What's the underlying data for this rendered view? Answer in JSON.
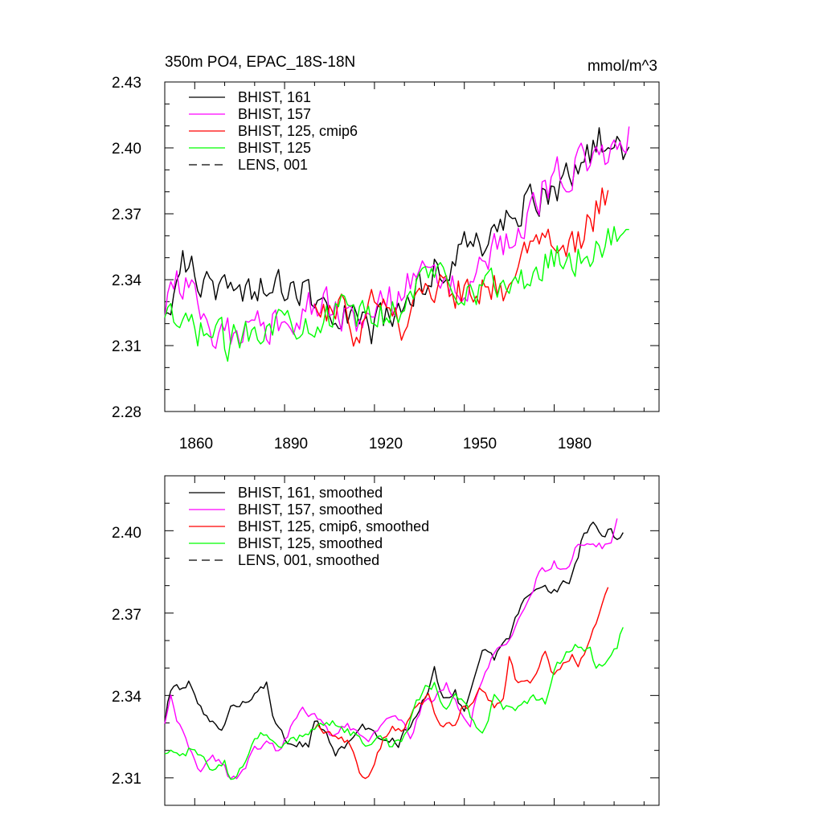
{
  "chart_data": [
    {
      "type": "line",
      "title": "350m PO4, EPAC_18S-18N",
      "units": "mmol/m^3",
      "xlabel": "",
      "ylabel": "",
      "xlim": [
        1850,
        2015
      ],
      "ylim": [
        2.28,
        2.43
      ],
      "xticks": [
        1860,
        1890,
        1920,
        1950,
        1980
      ],
      "xtick_labels": [
        "1860",
        "1890",
        "1920",
        "1950",
        "1980"
      ],
      "yticks": [
        2.28,
        2.31,
        2.34,
        2.37,
        2.4,
        2.43
      ],
      "ytick_labels": [
        "2.28",
        "2.31",
        "2.34",
        "2.37",
        "2.40",
        "2.43"
      ],
      "legend_position": "top-left",
      "series": [
        {
          "name": "BHIST, 161",
          "color": "#000000",
          "dash": "solid",
          "noise": 0.0075,
          "anchors": [
            [
              1850,
              2.322
            ],
            [
              1856,
              2.35
            ],
            [
              1858,
              2.345
            ],
            [
              1866,
              2.336
            ],
            [
              1880,
              2.337
            ],
            [
              1890,
              2.336
            ],
            [
              1900,
              2.332
            ],
            [
              1910,
              2.327
            ],
            [
              1920,
              2.317
            ],
            [
              1930,
              2.33
            ],
            [
              1940,
              2.345
            ],
            [
              1950,
              2.355
            ],
            [
              1960,
              2.36
            ],
            [
              1970,
              2.375
            ],
            [
              1980,
              2.381
            ],
            [
              1990,
              2.393
            ],
            [
              1995,
              2.405
            ],
            [
              2000,
              2.4
            ],
            [
              2005,
              2.402
            ]
          ]
        },
        {
          "name": "BHIST, 157",
          "color": "#ff00ff",
          "dash": "solid",
          "noise": 0.0085,
          "anchors": [
            [
              1850,
              2.32
            ],
            [
              1853,
              2.34
            ],
            [
              1858,
              2.34
            ],
            [
              1862,
              2.316
            ],
            [
              1868,
              2.312
            ],
            [
              1880,
              2.322
            ],
            [
              1890,
              2.318
            ],
            [
              1900,
              2.33
            ],
            [
              1910,
              2.325
            ],
            [
              1920,
              2.324
            ],
            [
              1930,
              2.335
            ],
            [
              1940,
              2.342
            ],
            [
              1950,
              2.338
            ],
            [
              1960,
              2.352
            ],
            [
              1970,
              2.37
            ],
            [
              1980,
              2.385
            ],
            [
              1990,
              2.395
            ],
            [
              2000,
              2.4
            ],
            [
              2005,
              2.41
            ]
          ]
        },
        {
          "name": "BHIST, 125, cmip6",
          "color": "#ff0000",
          "dash": "solid",
          "start": 1900,
          "end": 1998,
          "noise": 0.008,
          "anchors": [
            [
              1900,
              2.326
            ],
            [
              1910,
              2.325
            ],
            [
              1915,
              2.312
            ],
            [
              1920,
              2.33
            ],
            [
              1930,
              2.32
            ],
            [
              1940,
              2.338
            ],
            [
              1950,
              2.334
            ],
            [
              1960,
              2.34
            ],
            [
              1965,
              2.335
            ],
            [
              1970,
              2.348
            ],
            [
              1980,
              2.356
            ],
            [
              1988,
              2.355
            ],
            [
              1995,
              2.373
            ],
            [
              1998,
              2.38
            ]
          ]
        },
        {
          "name": "BHIST, 125",
          "color": "#00ff00",
          "dash": "solid",
          "noise": 0.0075,
          "anchors": [
            [
              1850,
              2.32
            ],
            [
              1856,
              2.318
            ],
            [
              1865,
              2.316
            ],
            [
              1872,
              2.31
            ],
            [
              1880,
              2.32
            ],
            [
              1890,
              2.322
            ],
            [
              1900,
              2.323
            ],
            [
              1910,
              2.325
            ],
            [
              1920,
              2.322
            ],
            [
              1930,
              2.33
            ],
            [
              1940,
              2.345
            ],
            [
              1950,
              2.337
            ],
            [
              1960,
              2.337
            ],
            [
              1970,
              2.338
            ],
            [
              1980,
              2.352
            ],
            [
              1990,
              2.35
            ],
            [
              1995,
              2.356
            ],
            [
              2000,
              2.358
            ],
            [
              2005,
              2.37
            ]
          ]
        }
      ],
      "extra_legend": [
        {
          "name": "LENS, 001",
          "color": "#000000",
          "dash": "dashed"
        }
      ]
    },
    {
      "type": "line",
      "title": "",
      "xlabel": "",
      "ylabel": "",
      "xlim": [
        1850,
        2015
      ],
      "ylim": [
        2.3,
        2.42
      ],
      "xticks": [
        1860,
        1890,
        1920,
        1950,
        1980
      ],
      "yticks": [
        2.31,
        2.34,
        2.37,
        2.4
      ],
      "ytick_labels": [
        "2.31",
        "2.34",
        "2.37",
        "2.40"
      ],
      "legend_position": "top-left",
      "series": [
        {
          "name": "BHIST, 161, smoothed",
          "color": "#000000",
          "dash": "solid",
          "noise": 0.0015,
          "anchors": [
            [
              1850,
              2.331
            ],
            [
              1852,
              2.343
            ],
            [
              1856,
              2.343
            ],
            [
              1858,
              2.344
            ],
            [
              1861,
              2.337
            ],
            [
              1865,
              2.33
            ],
            [
              1868,
              2.327
            ],
            [
              1870,
              2.329
            ],
            [
              1872,
              2.336
            ],
            [
              1876,
              2.338
            ],
            [
              1880,
              2.34
            ],
            [
              1884,
              2.344
            ],
            [
              1886,
              2.334
            ],
            [
              1890,
              2.325
            ],
            [
              1894,
              2.322
            ],
            [
              1898,
              2.322
            ],
            [
              1900,
              2.33
            ],
            [
              1904,
              2.327
            ],
            [
              1907,
              2.318
            ],
            [
              1910,
              2.322
            ],
            [
              1915,
              2.33
            ],
            [
              1920,
              2.325
            ],
            [
              1925,
              2.324
            ],
            [
              1928,
              2.322
            ],
            [
              1932,
              2.33
            ],
            [
              1938,
              2.342
            ],
            [
              1940,
              2.35
            ],
            [
              1943,
              2.339
            ],
            [
              1947,
              2.341
            ],
            [
              1950,
              2.333
            ],
            [
              1953,
              2.347
            ],
            [
              1956,
              2.358
            ],
            [
              1960,
              2.353
            ],
            [
              1965,
              2.362
            ],
            [
              1970,
              2.376
            ],
            [
              1975,
              2.379
            ],
            [
              1980,
              2.378
            ],
            [
              1985,
              2.382
            ],
            [
              1988,
              2.39
            ],
            [
              1990,
              2.4
            ],
            [
              1993,
              2.403
            ],
            [
              1996,
              2.398
            ],
            [
              1999,
              2.401
            ],
            [
              2001,
              2.396
            ],
            [
              2003,
              2.401
            ]
          ]
        },
        {
          "name": "BHIST, 157, smoothed",
          "color": "#ff00ff",
          "dash": "solid",
          "noise": 0.0015,
          "anchors": [
            [
              1850,
              2.331
            ],
            [
              1852,
              2.34
            ],
            [
              1854,
              2.332
            ],
            [
              1858,
              2.32
            ],
            [
              1862,
              2.313
            ],
            [
              1866,
              2.318
            ],
            [
              1870,
              2.315
            ],
            [
              1872,
              2.309
            ],
            [
              1876,
              2.312
            ],
            [
              1880,
              2.32
            ],
            [
              1885,
              2.324
            ],
            [
              1888,
              2.32
            ],
            [
              1892,
              2.328
            ],
            [
              1896,
              2.334
            ],
            [
              1900,
              2.332
            ],
            [
              1905,
              2.326
            ],
            [
              1910,
              2.33
            ],
            [
              1914,
              2.327
            ],
            [
              1918,
              2.325
            ],
            [
              1922,
              2.33
            ],
            [
              1928,
              2.331
            ],
            [
              1932,
              2.325
            ],
            [
              1936,
              2.337
            ],
            [
              1940,
              2.339
            ],
            [
              1944,
              2.344
            ],
            [
              1948,
              2.335
            ],
            [
              1952,
              2.33
            ],
            [
              1955,
              2.342
            ],
            [
              1960,
              2.355
            ],
            [
              1965,
              2.36
            ],
            [
              1970,
              2.372
            ],
            [
              1975,
              2.385
            ],
            [
              1980,
              2.388
            ],
            [
              1985,
              2.386
            ],
            [
              1988,
              2.396
            ],
            [
              1992,
              2.397
            ],
            [
              1996,
              2.394
            ],
            [
              1999,
              2.395
            ],
            [
              2001,
              2.405
            ]
          ]
        },
        {
          "name": "BHIST, 125, cmip6, smoothed",
          "color": "#ff0000",
          "dash": "solid",
          "start": 1900,
          "end": 1998,
          "noise": 0.0015,
          "anchors": [
            [
              1900,
              2.329
            ],
            [
              1905,
              2.327
            ],
            [
              1908,
              2.325
            ],
            [
              1912,
              2.323
            ],
            [
              1915,
              2.312
            ],
            [
              1918,
              2.31
            ],
            [
              1921,
              2.319
            ],
            [
              1925,
              2.328
            ],
            [
              1930,
              2.327
            ],
            [
              1934,
              2.336
            ],
            [
              1938,
              2.339
            ],
            [
              1942,
              2.33
            ],
            [
              1946,
              2.328
            ],
            [
              1950,
              2.337
            ],
            [
              1952,
              2.336
            ],
            [
              1955,
              2.344
            ],
            [
              1958,
              2.339
            ],
            [
              1960,
              2.337
            ],
            [
              1963,
              2.34
            ],
            [
              1965,
              2.355
            ],
            [
              1967,
              2.347
            ],
            [
              1970,
              2.344
            ],
            [
              1973,
              2.345
            ],
            [
              1977,
              2.356
            ],
            [
              1980,
              2.347
            ],
            [
              1983,
              2.351
            ],
            [
              1986,
              2.355
            ],
            [
              1988,
              2.352
            ],
            [
              1992,
              2.36
            ],
            [
              1995,
              2.37
            ],
            [
              1998,
              2.378
            ]
          ]
        },
        {
          "name": "BHIST, 125, smoothed",
          "color": "#00ff00",
          "dash": "solid",
          "noise": 0.0015,
          "anchors": [
            [
              1850,
              2.32
            ],
            [
              1854,
              2.318
            ],
            [
              1858,
              2.32
            ],
            [
              1862,
              2.318
            ],
            [
              1866,
              2.312
            ],
            [
              1870,
              2.315
            ],
            [
              1872,
              2.309
            ],
            [
              1876,
              2.315
            ],
            [
              1880,
              2.323
            ],
            [
              1884,
              2.327
            ],
            [
              1887,
              2.321
            ],
            [
              1890,
              2.323
            ],
            [
              1894,
              2.324
            ],
            [
              1898,
              2.326
            ],
            [
              1902,
              2.329
            ],
            [
              1906,
              2.33
            ],
            [
              1910,
              2.328
            ],
            [
              1914,
              2.325
            ],
            [
              1918,
              2.323
            ],
            [
              1922,
              2.326
            ],
            [
              1926,
              2.321
            ],
            [
              1930,
              2.325
            ],
            [
              1933,
              2.335
            ],
            [
              1937,
              2.343
            ],
            [
              1940,
              2.344
            ],
            [
              1944,
              2.335
            ],
            [
              1947,
              2.339
            ],
            [
              1950,
              2.339
            ],
            [
              1953,
              2.33
            ],
            [
              1956,
              2.326
            ],
            [
              1960,
              2.339
            ],
            [
              1963,
              2.336
            ],
            [
              1966,
              2.334
            ],
            [
              1970,
              2.338
            ],
            [
              1974,
              2.339
            ],
            [
              1977,
              2.337
            ],
            [
              1980,
              2.35
            ],
            [
              1984,
              2.355
            ],
            [
              1988,
              2.358
            ],
            [
              1992,
              2.357
            ],
            [
              1994,
              2.351
            ],
            [
              1996,
              2.35
            ],
            [
              1999,
              2.356
            ],
            [
              2001,
              2.358
            ],
            [
              2003,
              2.365
            ]
          ]
        }
      ],
      "extra_legend": [
        {
          "name": "LENS, 001, smoothed",
          "color": "#000000",
          "dash": "dashed"
        }
      ]
    }
  ]
}
